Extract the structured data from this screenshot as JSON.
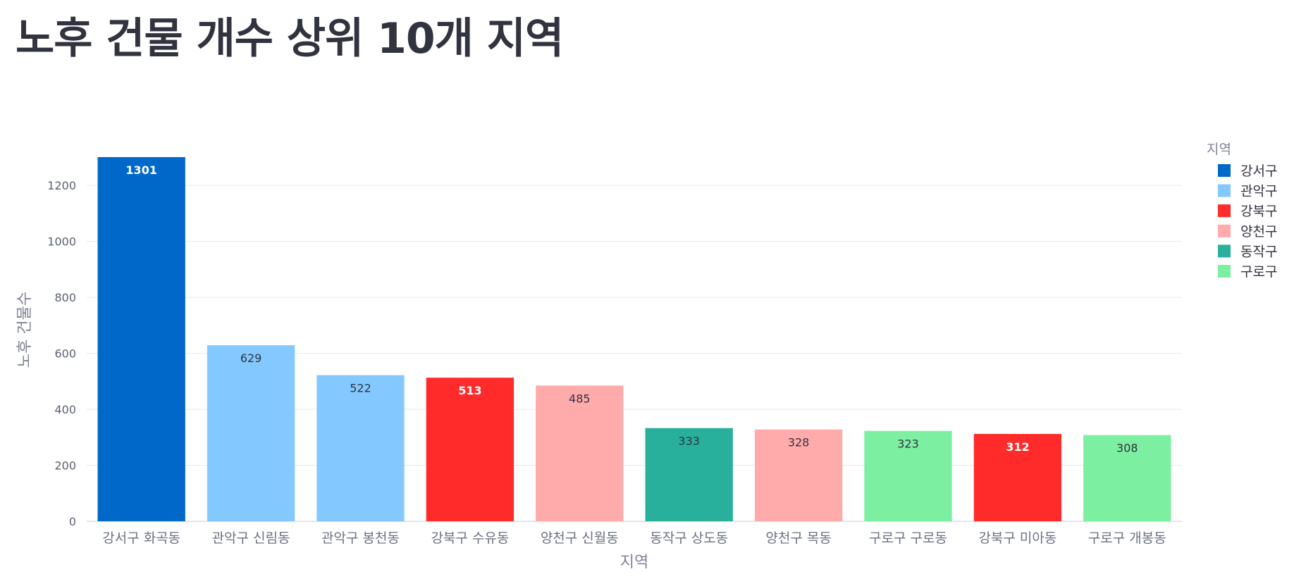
{
  "page": {
    "title": "노후 건물 개수 상위 10개 지역"
  },
  "chart_data": {
    "type": "bar",
    "title": "노후 건물 개수 상위 10개 지역",
    "xlabel": "지역",
    "ylabel": "노후 건물수",
    "ylim": [
      0,
      1301
    ],
    "yticks": [
      0,
      200,
      400,
      600,
      800,
      1000,
      1200
    ],
    "grid": true,
    "legend_title": "지역",
    "legend_position": "right",
    "categories": [
      "강서구 화곡동",
      "관악구 신림동",
      "관악구 봉천동",
      "강북구 수유동",
      "양천구 신월동",
      "동작구 상도동",
      "양천구 목동",
      "구로구 구로동",
      "강북구 미아동",
      "구로구 개봉동"
    ],
    "values": [
      1301,
      629,
      522,
      513,
      485,
      333,
      328,
      323,
      312,
      308
    ],
    "groups": [
      "강서구",
      "관악구",
      "관악구",
      "강북구",
      "양천구",
      "동작구",
      "양천구",
      "구로구",
      "강북구",
      "구로구"
    ],
    "legend": [
      {
        "name": "강서구",
        "color": "#0068c9"
      },
      {
        "name": "관악구",
        "color": "#83c9ff"
      },
      {
        "name": "강북구",
        "color": "#ff2b2b"
      },
      {
        "name": "양천구",
        "color": "#ffabab"
      },
      {
        "name": "동작구",
        "color": "#29b09d"
      },
      {
        "name": "구로구",
        "color": "#7defa1"
      }
    ],
    "label_colors": {
      "강서구": "#ffffff",
      "관악구": "#31333f",
      "강북구": "#ffffff",
      "양천구": "#31333f",
      "동작구": "#31333f",
      "구로구": "#31333f"
    }
  }
}
